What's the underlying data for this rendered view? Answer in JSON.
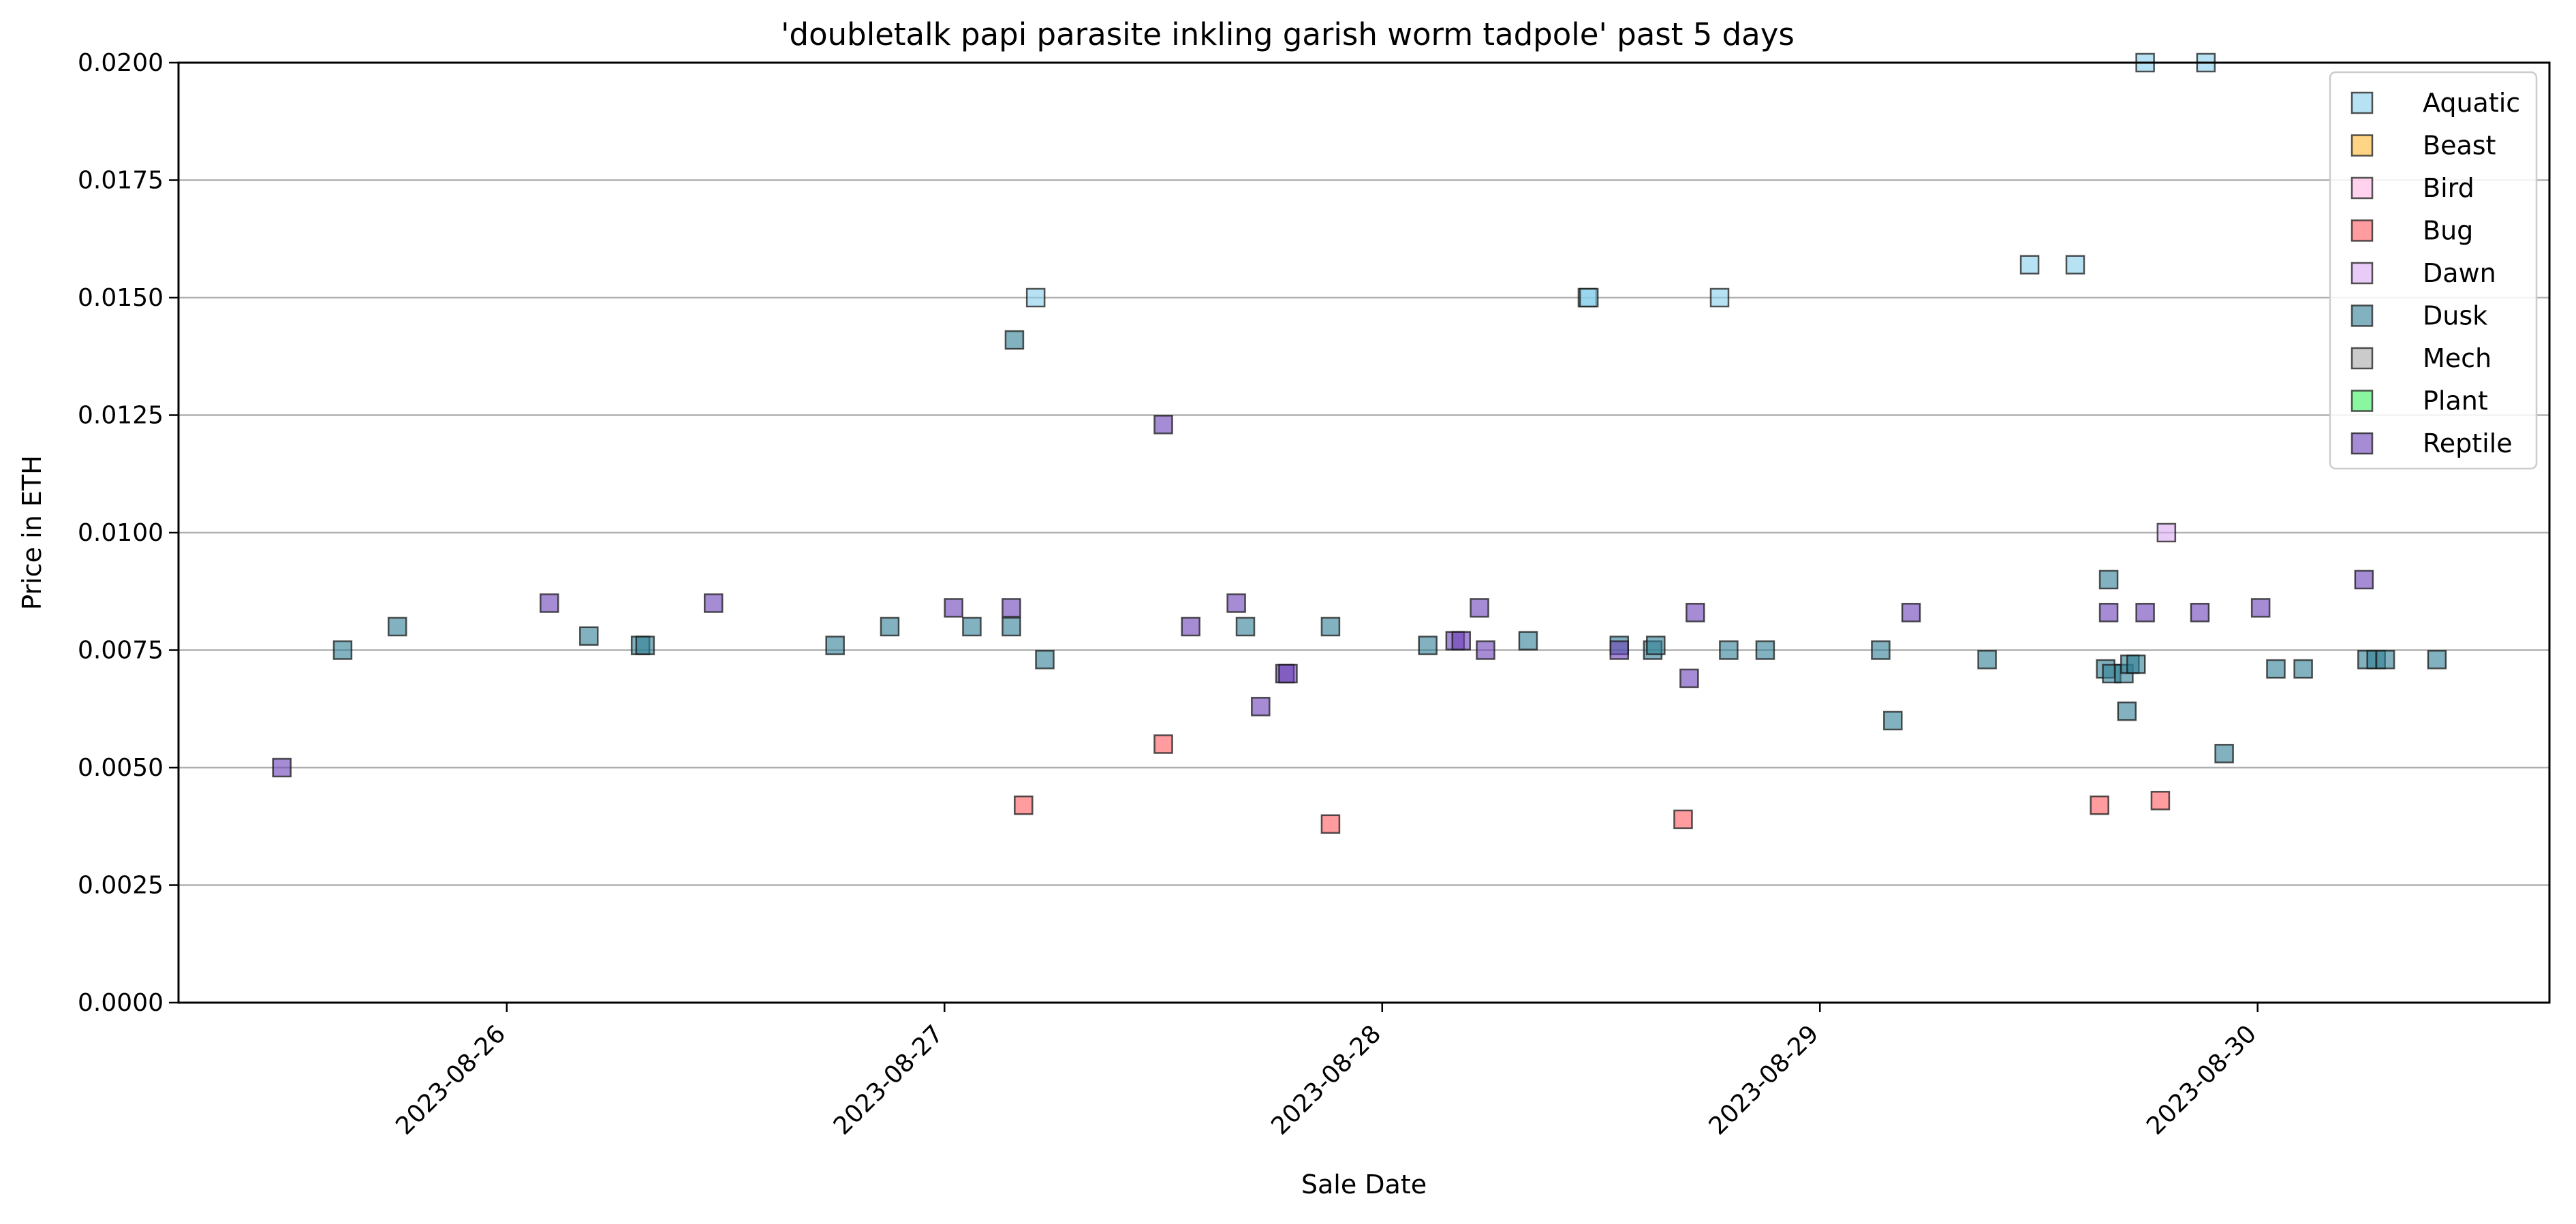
{
  "chart_data": {
    "type": "scatter",
    "title": "'doubletalk papi parasite inkling garish worm tadpole' past 5 days",
    "xlabel": "Sale Date",
    "ylabel": "Price in ETH",
    "x_ticks": [
      "2023-08-26",
      "2023-08-27",
      "2023-08-28",
      "2023-08-29",
      "2023-08-30"
    ],
    "x_range": [
      "2023-08-25 06:00",
      "2023-08-30 16:00"
    ],
    "y_ticks": [
      "0.0000",
      "0.0025",
      "0.0050",
      "0.0075",
      "0.0100",
      "0.0125",
      "0.0150",
      "0.0175",
      "0.0200"
    ],
    "ylim": [
      0,
      0.02
    ],
    "grid": "horizontal",
    "legend_position": "top-right",
    "series": [
      {
        "name": "Aquatic",
        "color": "#87CEEB",
        "points": [
          [
            "2023-08-27 05:00",
            0.015
          ],
          [
            "2023-08-28 11:15",
            0.015
          ],
          [
            "2023-08-28 11:20",
            0.015
          ],
          [
            "2023-08-28 18:30",
            0.015
          ],
          [
            "2023-08-29 11:30",
            0.0157
          ],
          [
            "2023-08-29 14:00",
            0.0157
          ],
          [
            "2023-08-29 17:50",
            0.02
          ],
          [
            "2023-08-29 21:10",
            0.02
          ]
        ]
      },
      {
        "name": "Beast",
        "color": "#FFB833",
        "points": []
      },
      {
        "name": "Bird",
        "color": "#FFB6E1",
        "points": []
      },
      {
        "name": "Bug",
        "color": "#FF5A5F",
        "points": [
          [
            "2023-08-27 04:20",
            0.0042
          ],
          [
            "2023-08-27 12:00",
            0.0055
          ],
          [
            "2023-08-27 21:10",
            0.0038
          ],
          [
            "2023-08-28 16:30",
            0.0039
          ],
          [
            "2023-08-29 15:20",
            0.0042
          ],
          [
            "2023-08-29 18:40",
            0.0043
          ]
        ]
      },
      {
        "name": "Dawn",
        "color": "#D8A8F0",
        "points": [
          [
            "2023-08-29 19:00",
            0.01
          ]
        ]
      },
      {
        "name": "Dusk",
        "color": "#2F7F95",
        "points": [
          [
            "2023-08-25 15:00",
            0.0075
          ],
          [
            "2023-08-25 18:00",
            0.008
          ],
          [
            "2023-08-26 04:30",
            0.0078
          ],
          [
            "2023-08-26 07:20",
            0.0076
          ],
          [
            "2023-08-26 07:35",
            0.0076
          ],
          [
            "2023-08-26 18:00",
            0.0076
          ],
          [
            "2023-08-26 21:00",
            0.008
          ],
          [
            "2023-08-27 01:30",
            0.008
          ],
          [
            "2023-08-27 03:40",
            0.008
          ],
          [
            "2023-08-27 03:50",
            0.0141
          ],
          [
            "2023-08-27 05:30",
            0.0073
          ],
          [
            "2023-08-27 16:30",
            0.008
          ],
          [
            "2023-08-27 21:10",
            0.008
          ],
          [
            "2023-08-28 02:30",
            0.0076
          ],
          [
            "2023-08-28 08:00",
            0.0077
          ],
          [
            "2023-08-28 13:00",
            0.0076
          ],
          [
            "2023-08-28 14:50",
            0.0075
          ],
          [
            "2023-08-28 15:00",
            0.0076
          ],
          [
            "2023-08-28 19:00",
            0.0075
          ],
          [
            "2023-08-28 21:00",
            0.0075
          ],
          [
            "2023-08-29 03:20",
            0.0075
          ],
          [
            "2023-08-29 04:00",
            0.006
          ],
          [
            "2023-08-29 09:10",
            0.0073
          ],
          [
            "2023-08-29 15:40",
            0.0071
          ],
          [
            "2023-08-29 15:50",
            0.009
          ],
          [
            "2023-08-29 16:00",
            0.007
          ],
          [
            "2023-08-29 16:40",
            0.007
          ],
          [
            "2023-08-29 16:50",
            0.0062
          ],
          [
            "2023-08-29 17:00",
            0.0072
          ],
          [
            "2023-08-29 17:20",
            0.0072
          ],
          [
            "2023-08-29 22:10",
            0.0053
          ],
          [
            "2023-08-30 01:00",
            0.0071
          ],
          [
            "2023-08-30 02:30",
            0.0071
          ],
          [
            "2023-08-30 06:00",
            0.0073
          ],
          [
            "2023-08-30 06:30",
            0.0073
          ],
          [
            "2023-08-30 07:00",
            0.0073
          ],
          [
            "2023-08-30 09:50",
            0.0073
          ]
        ]
      },
      {
        "name": "Mech",
        "color": "#A9A9A9",
        "points": []
      },
      {
        "name": "Plant",
        "color": "#3CF060",
        "points": []
      },
      {
        "name": "Reptile",
        "color": "#6A40B8",
        "points": [
          [
            "2023-08-25 11:40",
            0.005
          ],
          [
            "2023-08-26 02:20",
            0.0085
          ],
          [
            "2023-08-26 11:20",
            0.0085
          ],
          [
            "2023-08-27 00:30",
            0.0084
          ],
          [
            "2023-08-27 03:40",
            0.0084
          ],
          [
            "2023-08-27 12:00",
            0.0123
          ],
          [
            "2023-08-27 13:30",
            0.008
          ],
          [
            "2023-08-27 16:00",
            0.0085
          ],
          [
            "2023-08-27 17:20",
            0.0063
          ],
          [
            "2023-08-27 18:40",
            0.007
          ],
          [
            "2023-08-27 18:50",
            0.007
          ],
          [
            "2023-08-28 04:00",
            0.0077
          ],
          [
            "2023-08-28 04:20",
            0.0077
          ],
          [
            "2023-08-28 05:20",
            0.0084
          ],
          [
            "2023-08-28 05:40",
            0.0075
          ],
          [
            "2023-08-28 13:00",
            0.0075
          ],
          [
            "2023-08-28 16:50",
            0.0069
          ],
          [
            "2023-08-28 17:10",
            0.0083
          ],
          [
            "2023-08-29 05:00",
            0.0083
          ],
          [
            "2023-08-29 15:50",
            0.0083
          ],
          [
            "2023-08-29 17:50",
            0.0083
          ],
          [
            "2023-08-29 20:50",
            0.0083
          ],
          [
            "2023-08-30 00:10",
            0.0084
          ],
          [
            "2023-08-30 05:50",
            0.009
          ]
        ]
      }
    ]
  }
}
